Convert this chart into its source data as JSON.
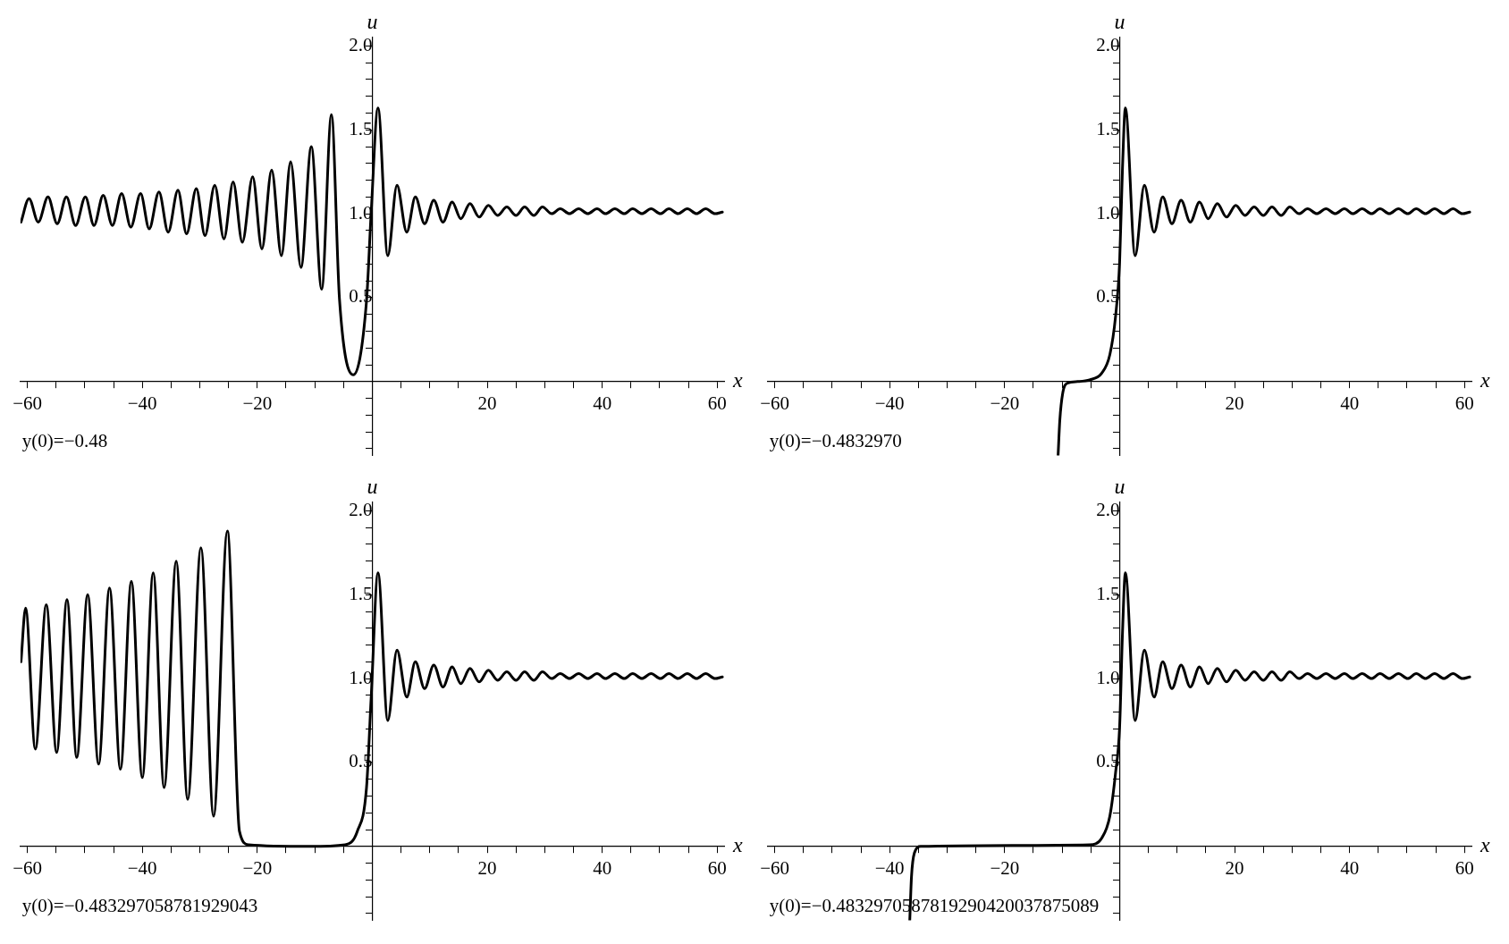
{
  "chart_data": [
    {
      "type": "line",
      "xlabel": "x",
      "ylabel": "u",
      "annotations": [
        "y(0)=−0.48"
      ],
      "color": "#000000",
      "x": [
        -61.1,
        -59.7,
        -58.1,
        -56.4,
        -54.8,
        -53.2,
        -51.6,
        -49.9,
        -48.4,
        -46.8,
        -45.2,
        -43.6,
        -42.0,
        -40.3,
        -38.8,
        -37.1,
        -35.5,
        -33.8,
        -32.3,
        -30.6,
        -29.1,
        -27.4,
        -25.8,
        -24.2,
        -22.6,
        -20.8,
        -19.2,
        -17.5,
        -15.8,
        -14.2,
        -12.4,
        -10.6,
        -8.8,
        -7.1,
        -5.7,
        -3.3,
        -1.0,
        -0.2,
        1.0,
        2.7,
        4.3,
        6.0,
        7.5,
        9.1,
        10.7,
        12.3,
        13.9,
        15.4,
        17.0,
        18.6,
        20.2,
        21.8,
        23.4,
        25.0,
        26.5,
        28.1,
        29.6,
        31.2,
        32.7,
        34.3,
        35.9,
        37.5,
        39.1,
        40.6,
        42.2,
        43.8,
        45.3,
        46.9,
        48.5,
        50.1,
        51.6,
        53.2,
        54.8,
        56.4,
        58.0,
        59.6,
        60.9
      ],
      "values": [
        0.95,
        1.09,
        0.95,
        1.1,
        0.94,
        1.1,
        0.93,
        1.1,
        0.93,
        1.11,
        0.93,
        1.12,
        0.92,
        1.12,
        0.91,
        1.13,
        0.89,
        1.14,
        0.88,
        1.15,
        0.87,
        1.17,
        0.85,
        1.19,
        0.83,
        1.22,
        0.79,
        1.26,
        0.75,
        1.31,
        0.68,
        1.4,
        0.55,
        1.59,
        0.49,
        0.04,
        0.48,
        1.0,
        1.63,
        0.75,
        1.17,
        0.89,
        1.1,
        0.94,
        1.08,
        0.95,
        1.07,
        0.97,
        1.06,
        0.98,
        1.05,
        0.99,
        1.04,
        0.99,
        1.04,
        0.99,
        1.04,
        1.0,
        1.03,
        1.0,
        1.03,
        1.0,
        1.03,
        1.0,
        1.03,
        1.0,
        1.03,
        1.0,
        1.03,
        1.0,
        1.03,
        1.0,
        1.03,
        1.0,
        1.03,
        1.0,
        1.01
      ],
      "xlim": [
        -61.2,
        61.2
      ],
      "ylim": [
        -0.44,
        2.05
      ],
      "xticks": [
        {
          "value": -60,
          "label": "−60"
        },
        {
          "value": -55,
          "label": null
        },
        {
          "value": -50,
          "label": null
        },
        {
          "value": -45,
          "label": null
        },
        {
          "value": -40,
          "label": "−40"
        },
        {
          "value": -35,
          "label": null
        },
        {
          "value": -30,
          "label": null
        },
        {
          "value": -25,
          "label": null
        },
        {
          "value": -20,
          "label": "−20"
        },
        {
          "value": -15,
          "label": null
        },
        {
          "value": -10,
          "label": null
        },
        {
          "value": -5,
          "label": null
        },
        {
          "value": 5,
          "label": null
        },
        {
          "value": 10,
          "label": null
        },
        {
          "value": 15,
          "label": null
        },
        {
          "value": 20,
          "label": "20"
        },
        {
          "value": 25,
          "label": null
        },
        {
          "value": 30,
          "label": null
        },
        {
          "value": 35,
          "label": null
        },
        {
          "value": 40,
          "label": "40"
        },
        {
          "value": 45,
          "label": null
        },
        {
          "value": 50,
          "label": null
        },
        {
          "value": 55,
          "label": null
        },
        {
          "value": 60,
          "label": "60"
        }
      ],
      "yticks": [
        {
          "value": -0.4,
          "label": null
        },
        {
          "value": -0.3,
          "label": null
        },
        {
          "value": -0.2,
          "label": null
        },
        {
          "value": -0.1,
          "label": null
        },
        {
          "value": 0.1,
          "label": null
        },
        {
          "value": 0.2,
          "label": null
        },
        {
          "value": 0.3,
          "label": null
        },
        {
          "value": 0.4,
          "label": null
        },
        {
          "value": 0.5,
          "label": "0.5"
        },
        {
          "value": 0.6,
          "label": null
        },
        {
          "value": 0.7,
          "label": null
        },
        {
          "value": 0.8,
          "label": null
        },
        {
          "value": 0.9,
          "label": null
        },
        {
          "value": 1.0,
          "label": "1.0"
        },
        {
          "value": 1.1,
          "label": null
        },
        {
          "value": 1.2,
          "label": null
        },
        {
          "value": 1.3,
          "label": null
        },
        {
          "value": 1.4,
          "label": null
        },
        {
          "value": 1.5,
          "label": "1.5"
        },
        {
          "value": 1.6,
          "label": null
        },
        {
          "value": 1.7,
          "label": null
        },
        {
          "value": 1.8,
          "label": null
        },
        {
          "value": 1.9,
          "label": null
        },
        {
          "value": 2.0,
          "label": "2.0"
        }
      ]
    },
    {
      "type": "line",
      "xlabel": "x",
      "ylabel": "u",
      "annotations": [
        "y(0)=−0.4832970"
      ],
      "color": "#000000",
      "x": [
        -10.7,
        -10.4,
        -9.9,
        -9.1,
        -7.3,
        -5.2,
        -3.1,
        -1.7,
        -0.7,
        0,
        0.5,
        1.0,
        2.7,
        4.3,
        6.0,
        7.5,
        9.1,
        10.7,
        12.3,
        13.9,
        15.4,
        17.0,
        18.6,
        20.2,
        21.8,
        23.4,
        25.0,
        26.5,
        28.1,
        29.6,
        31.2,
        32.7,
        34.3,
        35.9,
        37.5,
        39.1,
        40.6,
        42.2,
        43.8,
        45.3,
        46.9,
        48.5,
        50.1,
        51.6,
        53.2,
        54.8,
        56.4,
        58.0,
        59.6,
        60.9
      ],
      "values": [
        -0.44,
        -0.23,
        -0.07,
        -0.01,
        0.0,
        0.01,
        0.05,
        0.16,
        0.39,
        0.71,
        1.27,
        1.63,
        0.75,
        1.17,
        0.89,
        1.1,
        0.94,
        1.08,
        0.95,
        1.07,
        0.97,
        1.06,
        0.98,
        1.05,
        0.99,
        1.04,
        0.99,
        1.04,
        0.99,
        1.04,
        1.0,
        1.03,
        1.0,
        1.03,
        1.0,
        1.03,
        1.0,
        1.03,
        1.0,
        1.03,
        1.0,
        1.03,
        1.0,
        1.03,
        1.0,
        1.03,
        1.0,
        1.03,
        1.0,
        1.01
      ],
      "xlim": [
        -61.2,
        61.2
      ],
      "ylim": [
        -0.44,
        2.05
      ],
      "xticks": [
        {
          "value": -60,
          "label": "−60"
        },
        {
          "value": -55,
          "label": null
        },
        {
          "value": -50,
          "label": null
        },
        {
          "value": -45,
          "label": null
        },
        {
          "value": -40,
          "label": "−40"
        },
        {
          "value": -35,
          "label": null
        },
        {
          "value": -30,
          "label": null
        },
        {
          "value": -25,
          "label": null
        },
        {
          "value": -20,
          "label": "−20"
        },
        {
          "value": -15,
          "label": null
        },
        {
          "value": -10,
          "label": null
        },
        {
          "value": -5,
          "label": null
        },
        {
          "value": 5,
          "label": null
        },
        {
          "value": 10,
          "label": null
        },
        {
          "value": 15,
          "label": null
        },
        {
          "value": 20,
          "label": "20"
        },
        {
          "value": 25,
          "label": null
        },
        {
          "value": 30,
          "label": null
        },
        {
          "value": 35,
          "label": null
        },
        {
          "value": 40,
          "label": "40"
        },
        {
          "value": 45,
          "label": null
        },
        {
          "value": 50,
          "label": null
        },
        {
          "value": 55,
          "label": null
        },
        {
          "value": 60,
          "label": "60"
        }
      ],
      "yticks": [
        {
          "value": -0.4,
          "label": null
        },
        {
          "value": -0.3,
          "label": null
        },
        {
          "value": -0.2,
          "label": null
        },
        {
          "value": -0.1,
          "label": null
        },
        {
          "value": 0.1,
          "label": null
        },
        {
          "value": 0.2,
          "label": null
        },
        {
          "value": 0.3,
          "label": null
        },
        {
          "value": 0.4,
          "label": null
        },
        {
          "value": 0.5,
          "label": "0.5"
        },
        {
          "value": 0.6,
          "label": null
        },
        {
          "value": 0.7,
          "label": null
        },
        {
          "value": 0.8,
          "label": null
        },
        {
          "value": 0.9,
          "label": null
        },
        {
          "value": 1.0,
          "label": "1.0"
        },
        {
          "value": 1.1,
          "label": null
        },
        {
          "value": 1.2,
          "label": null
        },
        {
          "value": 1.3,
          "label": null
        },
        {
          "value": 1.4,
          "label": null
        },
        {
          "value": 1.5,
          "label": "1.5"
        },
        {
          "value": 1.6,
          "label": null
        },
        {
          "value": 1.7,
          "label": null
        },
        {
          "value": 1.8,
          "label": null
        },
        {
          "value": 1.9,
          "label": null
        },
        {
          "value": 2.0,
          "label": "2.0"
        }
      ]
    },
    {
      "type": "line",
      "xlabel": "x",
      "ylabel": "u",
      "annotations": [
        "y(0)=−0.483297058781929043"
      ],
      "color": "#000000",
      "x": [
        -61.1,
        -60.3,
        -58.6,
        -56.7,
        -54.9,
        -53.1,
        -51.4,
        -49.5,
        -47.6,
        -45.7,
        -43.8,
        -41.9,
        -40.0,
        -38.1,
        -36.2,
        -34.1,
        -32.1,
        -29.8,
        -27.6,
        -25.2,
        -23.1,
        -21.5,
        -11.0,
        -4.7,
        -2.6,
        -1.0,
        -0.2,
        1.0,
        2.7,
        4.3,
        6.0,
        7.5,
        9.1,
        10.7,
        12.3,
        13.9,
        15.4,
        17.0,
        18.6,
        20.2,
        21.8,
        23.4,
        25.0,
        26.5,
        28.1,
        29.6,
        31.2,
        32.7,
        34.3,
        35.9,
        37.5,
        39.1,
        40.6,
        42.2,
        43.8,
        45.3,
        46.9,
        48.5,
        50.1,
        51.6,
        53.2,
        54.8,
        56.4,
        58.0,
        59.6,
        60.9
      ],
      "values": [
        1.1,
        1.42,
        0.58,
        1.44,
        0.56,
        1.47,
        0.53,
        1.5,
        0.49,
        1.54,
        0.46,
        1.58,
        0.41,
        1.63,
        0.35,
        1.7,
        0.28,
        1.78,
        0.18,
        1.88,
        0.09,
        0.01,
        0.0,
        0.01,
        0.09,
        0.35,
        0.88,
        1.63,
        0.75,
        1.17,
        0.89,
        1.1,
        0.94,
        1.08,
        0.95,
        1.07,
        0.97,
        1.06,
        0.98,
        1.05,
        0.99,
        1.04,
        0.99,
        1.04,
        0.99,
        1.04,
        1.0,
        1.03,
        1.0,
        1.03,
        1.0,
        1.03,
        1.0,
        1.03,
        1.0,
        1.03,
        1.0,
        1.03,
        1.0,
        1.03,
        1.0,
        1.03,
        1.0,
        1.03,
        1.0,
        1.01
      ],
      "xlim": [
        -61.2,
        61.2
      ],
      "ylim": [
        -0.44,
        2.05
      ],
      "xticks": [
        {
          "value": -60,
          "label": "−60"
        },
        {
          "value": -55,
          "label": null
        },
        {
          "value": -50,
          "label": null
        },
        {
          "value": -45,
          "label": null
        },
        {
          "value": -40,
          "label": "−40"
        },
        {
          "value": -35,
          "label": null
        },
        {
          "value": -30,
          "label": null
        },
        {
          "value": -25,
          "label": null
        },
        {
          "value": -20,
          "label": "−20"
        },
        {
          "value": -15,
          "label": null
        },
        {
          "value": -10,
          "label": null
        },
        {
          "value": -5,
          "label": null
        },
        {
          "value": 5,
          "label": null
        },
        {
          "value": 10,
          "label": null
        },
        {
          "value": 15,
          "label": null
        },
        {
          "value": 20,
          "label": "20"
        },
        {
          "value": 25,
          "label": null
        },
        {
          "value": 30,
          "label": null
        },
        {
          "value": 35,
          "label": null
        },
        {
          "value": 40,
          "label": "40"
        },
        {
          "value": 45,
          "label": null
        },
        {
          "value": 50,
          "label": null
        },
        {
          "value": 55,
          "label": null
        },
        {
          "value": 60,
          "label": "60"
        }
      ],
      "yticks": [
        {
          "value": -0.4,
          "label": null
        },
        {
          "value": -0.3,
          "label": null
        },
        {
          "value": -0.2,
          "label": null
        },
        {
          "value": -0.1,
          "label": null
        },
        {
          "value": 0.1,
          "label": null
        },
        {
          "value": 0.2,
          "label": null
        },
        {
          "value": 0.3,
          "label": null
        },
        {
          "value": 0.4,
          "label": null
        },
        {
          "value": 0.5,
          "label": "0.5"
        },
        {
          "value": 0.6,
          "label": null
        },
        {
          "value": 0.7,
          "label": null
        },
        {
          "value": 0.8,
          "label": null
        },
        {
          "value": 0.9,
          "label": null
        },
        {
          "value": 1.0,
          "label": "1.0"
        },
        {
          "value": 1.1,
          "label": null
        },
        {
          "value": 1.2,
          "label": null
        },
        {
          "value": 1.3,
          "label": null
        },
        {
          "value": 1.4,
          "label": null
        },
        {
          "value": 1.5,
          "label": "1.5"
        },
        {
          "value": 1.6,
          "label": null
        },
        {
          "value": 1.7,
          "label": null
        },
        {
          "value": 1.8,
          "label": null
        },
        {
          "value": 1.9,
          "label": null
        },
        {
          "value": 2.0,
          "label": "2.0"
        }
      ]
    },
    {
      "type": "line",
      "xlabel": "x",
      "ylabel": "u",
      "annotations": [
        "y(0)=−0.4832970587819290420037875089"
      ],
      "color": "#000000",
      "x": [
        -36.5,
        -36.2,
        -35.7,
        -34.6,
        -5.2,
        -3.1,
        -1.7,
        -0.7,
        0,
        0.5,
        1.0,
        2.7,
        4.3,
        6.0,
        7.5,
        9.1,
        10.7,
        12.3,
        13.9,
        15.4,
        17.0,
        18.6,
        20.2,
        21.8,
        23.4,
        25.0,
        26.5,
        28.1,
        29.6,
        31.2,
        32.7,
        34.3,
        35.9,
        37.5,
        39.1,
        40.6,
        42.2,
        43.8,
        45.3,
        46.9,
        48.5,
        50.1,
        51.6,
        53.2,
        54.8,
        56.4,
        58.0,
        59.6,
        60.9
      ],
      "values": [
        -0.44,
        -0.18,
        -0.04,
        0.0,
        0.01,
        0.05,
        0.18,
        0.44,
        0.71,
        1.27,
        1.63,
        0.75,
        1.17,
        0.89,
        1.1,
        0.94,
        1.08,
        0.95,
        1.07,
        0.97,
        1.06,
        0.98,
        1.05,
        0.99,
        1.04,
        0.99,
        1.04,
        0.99,
        1.04,
        1.0,
        1.03,
        1.0,
        1.03,
        1.0,
        1.03,
        1.0,
        1.03,
        1.0,
        1.03,
        1.0,
        1.03,
        1.0,
        1.03,
        1.0,
        1.03,
        1.0,
        1.03,
        1.0,
        1.01
      ],
      "xlim": [
        -61.2,
        61.2
      ],
      "ylim": [
        -0.44,
        2.05
      ],
      "xticks": [
        {
          "value": -60,
          "label": "−60"
        },
        {
          "value": -55,
          "label": null
        },
        {
          "value": -50,
          "label": null
        },
        {
          "value": -45,
          "label": null
        },
        {
          "value": -40,
          "label": "−40"
        },
        {
          "value": -35,
          "label": null
        },
        {
          "value": -30,
          "label": null
        },
        {
          "value": -25,
          "label": null
        },
        {
          "value": -20,
          "label": "−20"
        },
        {
          "value": -15,
          "label": null
        },
        {
          "value": -10,
          "label": null
        },
        {
          "value": -5,
          "label": null
        },
        {
          "value": 5,
          "label": null
        },
        {
          "value": 10,
          "label": null
        },
        {
          "value": 15,
          "label": null
        },
        {
          "value": 20,
          "label": "20"
        },
        {
          "value": 25,
          "label": null
        },
        {
          "value": 30,
          "label": null
        },
        {
          "value": 35,
          "label": null
        },
        {
          "value": 40,
          "label": "40"
        },
        {
          "value": 45,
          "label": null
        },
        {
          "value": 50,
          "label": null
        },
        {
          "value": 55,
          "label": null
        },
        {
          "value": 60,
          "label": "60"
        }
      ],
      "yticks": [
        {
          "value": -0.4,
          "label": null
        },
        {
          "value": -0.3,
          "label": null
        },
        {
          "value": -0.2,
          "label": null
        },
        {
          "value": -0.1,
          "label": null
        },
        {
          "value": 0.1,
          "label": null
        },
        {
          "value": 0.2,
          "label": null
        },
        {
          "value": 0.3,
          "label": null
        },
        {
          "value": 0.4,
          "label": null
        },
        {
          "value": 0.5,
          "label": "0.5"
        },
        {
          "value": 0.6,
          "label": null
        },
        {
          "value": 0.7,
          "label": null
        },
        {
          "value": 0.8,
          "label": null
        },
        {
          "value": 0.9,
          "label": null
        },
        {
          "value": 1.0,
          "label": "1.0"
        },
        {
          "value": 1.1,
          "label": null
        },
        {
          "value": 1.2,
          "label": null
        },
        {
          "value": 1.3,
          "label": null
        },
        {
          "value": 1.4,
          "label": null
        },
        {
          "value": 1.5,
          "label": "1.5"
        },
        {
          "value": 1.6,
          "label": null
        },
        {
          "value": 1.7,
          "label": null
        },
        {
          "value": 1.8,
          "label": null
        },
        {
          "value": 1.9,
          "label": null
        },
        {
          "value": 2.0,
          "label": "2.0"
        }
      ]
    }
  ]
}
